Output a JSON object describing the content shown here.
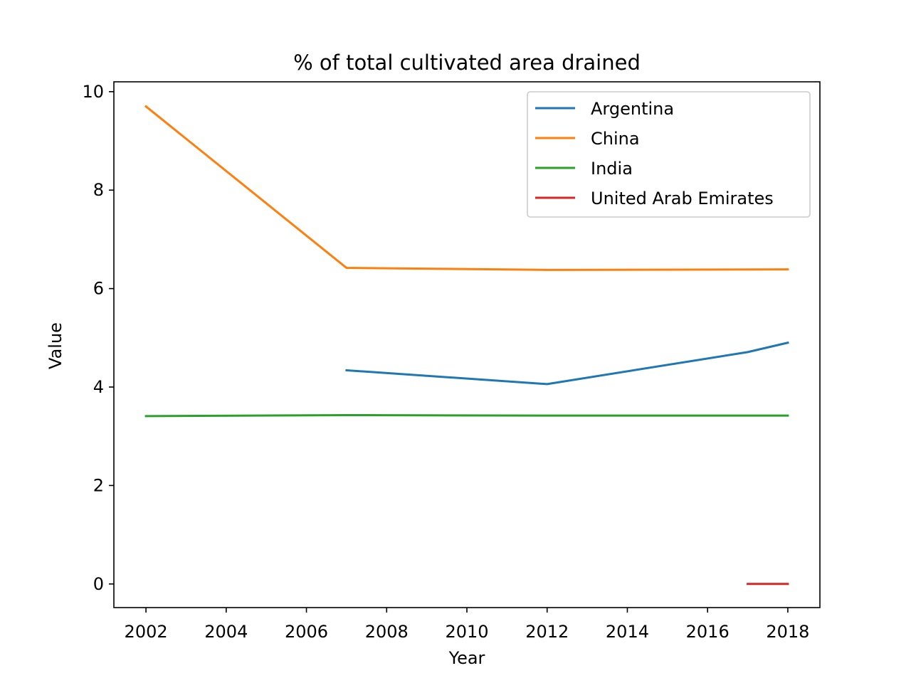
{
  "chart_data": {
    "type": "line",
    "title": "% of total cultivated area drained",
    "xlabel": "Year",
    "ylabel": "Value",
    "xlim": [
      2001.2,
      2018.8
    ],
    "ylim": [
      -0.48,
      10.2
    ],
    "xticks": [
      2002,
      2004,
      2006,
      2008,
      2010,
      2012,
      2014,
      2016,
      2018
    ],
    "yticks": [
      0,
      2,
      4,
      6,
      8,
      10
    ],
    "grid": false,
    "legend_position": "top-right",
    "series": [
      {
        "name": "Argentina",
        "color": "#1f77b4",
        "x": [
          2007,
          2012,
          2017,
          2018
        ],
        "y": [
          4.34,
          4.06,
          4.71,
          4.9
        ]
      },
      {
        "name": "China",
        "color": "#ff7f0e",
        "x": [
          2002,
          2007,
          2012,
          2018
        ],
        "y": [
          9.7,
          6.42,
          6.38,
          6.39
        ]
      },
      {
        "name": "India",
        "color": "#2ca02c",
        "x": [
          2002,
          2007,
          2012,
          2018
        ],
        "y": [
          3.41,
          3.43,
          3.42,
          3.42
        ]
      },
      {
        "name": "United Arab Emirates",
        "color": "#d62728",
        "x": [
          2017,
          2018
        ],
        "y": [
          0.0,
          0.0
        ]
      }
    ]
  }
}
